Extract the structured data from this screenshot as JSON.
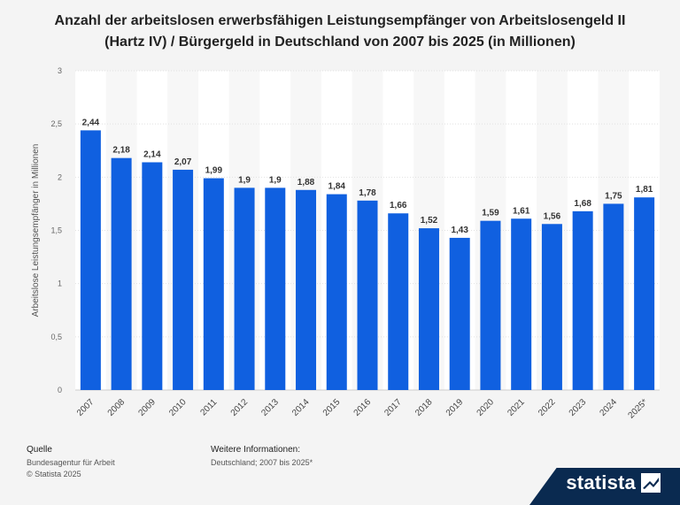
{
  "title": "Anzahl der arbeitslosen erwerbsfähigen Leistungsempfänger von Arbeitslosengeld II (Hartz IV) / Bürgergeld in Deutschland von 2007 bis 2025 (in Millionen)",
  "chart_data": {
    "type": "bar",
    "categories": [
      "2007",
      "2008",
      "2009",
      "2010",
      "2011",
      "2012",
      "2013",
      "2014",
      "2015",
      "2016",
      "2017",
      "2018",
      "2019",
      "2020",
      "2021",
      "2022",
      "2023",
      "2024",
      "2025*"
    ],
    "values": [
      2.44,
      2.18,
      2.14,
      2.07,
      1.99,
      1.9,
      1.9,
      1.88,
      1.84,
      1.78,
      1.66,
      1.52,
      1.43,
      1.59,
      1.61,
      1.56,
      1.68,
      1.75,
      1.81
    ],
    "value_labels": [
      "2,44",
      "2,18",
      "2,14",
      "2,07",
      "1,99",
      "1,9",
      "1,9",
      "1,88",
      "1,84",
      "1,78",
      "1,66",
      "1,52",
      "1,43",
      "1,59",
      "1,61",
      "1,56",
      "1,68",
      "1,75",
      "1,81"
    ],
    "y_ticks": [
      0,
      0.5,
      1,
      1.5,
      2,
      2.5,
      3
    ],
    "y_tick_labels": [
      "0",
      "0,5",
      "1",
      "1,5",
      "2",
      "2,5",
      "3"
    ],
    "ylabel": "Arbeitslose Leistungsempfänger in Millionen",
    "xlabel": "",
    "ylim": [
      0,
      3
    ],
    "bar_color": "#1060e0",
    "grid": true
  },
  "footer": {
    "source_label": "Quelle",
    "source_lines": [
      "Bundesagentur für Arbeit",
      "© Statista 2025"
    ],
    "info_label": "Weitere Informationen:",
    "info_lines": [
      "Deutschland; 2007 bis 2025*"
    ]
  },
  "brand": {
    "name": "statista",
    "bg_color": "#0a2a50"
  }
}
